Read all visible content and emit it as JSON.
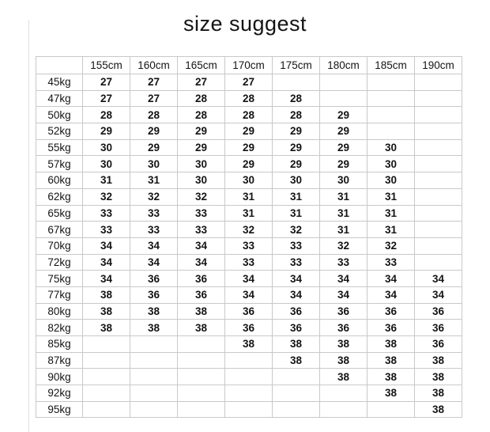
{
  "page": {
    "title": "size suggest"
  },
  "chart_data": {
    "type": "table",
    "title": "size suggest",
    "corner_label": "",
    "column_headers": [
      "155cm",
      "160cm",
      "165cm",
      "170cm",
      "175cm",
      "180cm",
      "185cm",
      "190cm"
    ],
    "row_headers": [
      "45kg",
      "47kg",
      "50kg",
      "52kg",
      "55kg",
      "57kg",
      "60kg",
      "62kg",
      "65kg",
      "67kg",
      "70kg",
      "72kg",
      "75kg",
      "77kg",
      "80kg",
      "82kg",
      "85kg",
      "87kg",
      "90kg",
      "92kg",
      "95kg"
    ],
    "rows": [
      [
        "27",
        "27",
        "27",
        "27",
        "",
        "",
        "",
        ""
      ],
      [
        "27",
        "27",
        "28",
        "28",
        "28",
        "",
        "",
        ""
      ],
      [
        "28",
        "28",
        "28",
        "28",
        "28",
        "29",
        "",
        ""
      ],
      [
        "29",
        "29",
        "29",
        "29",
        "29",
        "29",
        "",
        ""
      ],
      [
        "30",
        "29",
        "29",
        "29",
        "29",
        "29",
        "30",
        ""
      ],
      [
        "30",
        "30",
        "30",
        "29",
        "29",
        "29",
        "30",
        ""
      ],
      [
        "31",
        "31",
        "30",
        "30",
        "30",
        "30",
        "30",
        ""
      ],
      [
        "32",
        "32",
        "32",
        "31",
        "31",
        "31",
        "31",
        ""
      ],
      [
        "33",
        "33",
        "33",
        "31",
        "31",
        "31",
        "31",
        ""
      ],
      [
        "33",
        "33",
        "33",
        "32",
        "32",
        "31",
        "31",
        ""
      ],
      [
        "34",
        "34",
        "34",
        "33",
        "33",
        "32",
        "32",
        ""
      ],
      [
        "34",
        "34",
        "34",
        "33",
        "33",
        "33",
        "33",
        ""
      ],
      [
        "34",
        "36",
        "36",
        "34",
        "34",
        "34",
        "34",
        "34"
      ],
      [
        "38",
        "36",
        "36",
        "34",
        "34",
        "34",
        "34",
        "34"
      ],
      [
        "38",
        "38",
        "38",
        "36",
        "36",
        "36",
        "36",
        "36"
      ],
      [
        "38",
        "38",
        "38",
        "36",
        "36",
        "36",
        "36",
        "36"
      ],
      [
        "",
        "",
        "",
        "38",
        "38",
        "38",
        "38",
        "36"
      ],
      [
        "",
        "",
        "",
        "",
        "38",
        "38",
        "38",
        "38"
      ],
      [
        "",
        "",
        "",
        "",
        "",
        "38",
        "38",
        "38"
      ],
      [
        "",
        "",
        "",
        "",
        "",
        "",
        "38",
        "38"
      ],
      [
        "",
        "",
        "",
        "",
        "",
        "",
        "",
        "38"
      ]
    ],
    "units": {
      "columns": "height (cm)",
      "rows": "weight (kg)",
      "cells": "size"
    }
  },
  "colors": {
    "background": "#ffffff",
    "text": "#141414",
    "grid_line": "#c9c9c9",
    "header_underline": "#9b9b9b",
    "faint_edge_line": "#e0e0e0"
  }
}
